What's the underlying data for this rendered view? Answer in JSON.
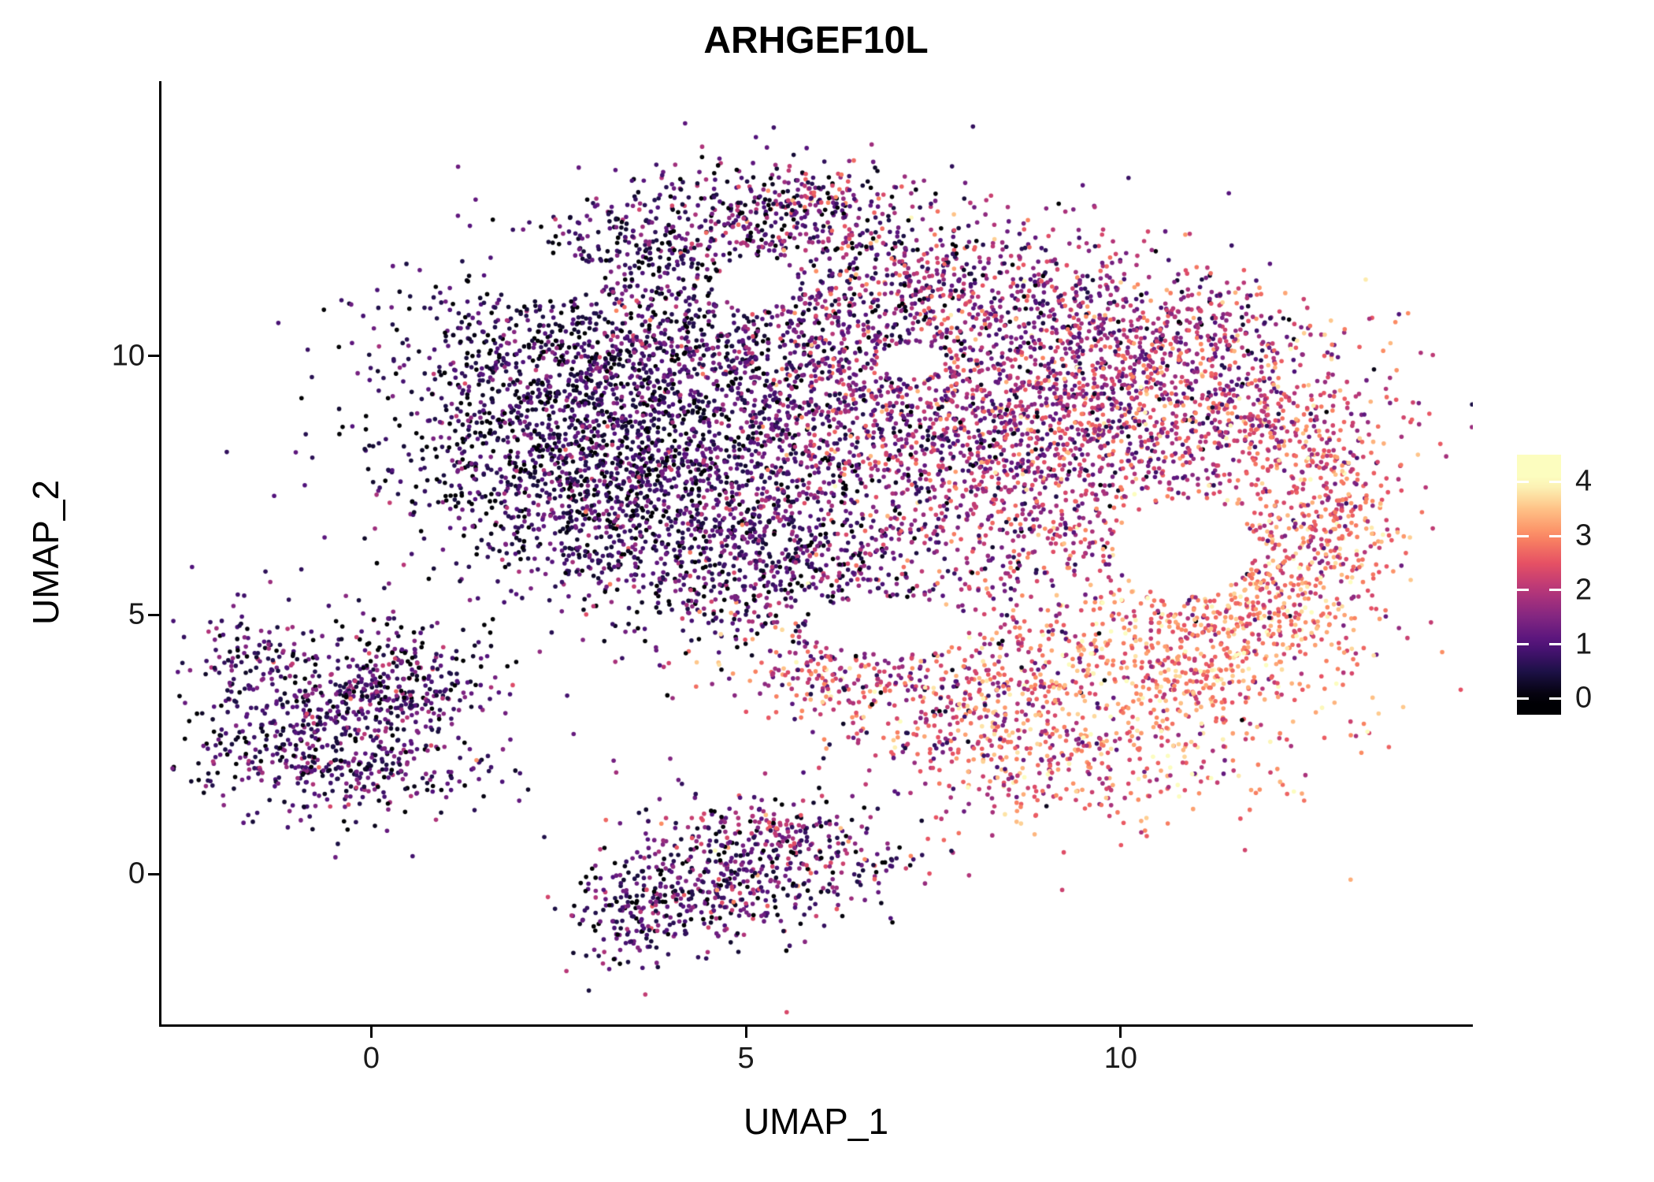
{
  "chart_data": {
    "type": "scatter",
    "title": "ARHGEF10L",
    "xlabel": "UMAP_1",
    "ylabel": "UMAP_2",
    "xlim": [
      -2.8,
      14.7
    ],
    "ylim": [
      -2.9,
      15.3
    ],
    "xticks": [
      0,
      5,
      10
    ],
    "yticks": [
      0,
      5,
      10
    ],
    "grid": false,
    "background": "#ffffff",
    "axis_color": "#000000",
    "tick_label_color": "#1a1a1a",
    "point": {
      "radius": 2.8,
      "seed": 7
    },
    "colorbar": {
      "position": "right",
      "vmin": 0,
      "vmax": 4,
      "ticks": [
        0,
        1,
        2,
        3,
        4
      ],
      "bar_range": [
        -0.3,
        4.5
      ],
      "colormap": "magma",
      "stops": [
        {
          "t": 0.0,
          "color": "#000004"
        },
        {
          "t": 0.125,
          "color": "#1d1147"
        },
        {
          "t": 0.25,
          "color": "#51127c"
        },
        {
          "t": 0.375,
          "color": "#822681"
        },
        {
          "t": 0.5,
          "color": "#b63679"
        },
        {
          "t": 0.625,
          "color": "#e65164"
        },
        {
          "t": 0.75,
          "color": "#fb8861"
        },
        {
          "t": 0.875,
          "color": "#fec287"
        },
        {
          "t": 1.0,
          "color": "#fcfdbf"
        }
      ]
    },
    "cluster_fields": [
      "center_x",
      "center_y",
      "sd_x",
      "sd_y",
      "n_points",
      "expression_mean",
      "expression_sd"
    ],
    "clusters": [
      [
        2.3,
        8.6,
        1.05,
        1.35,
        850,
        0.55,
        0.55
      ],
      [
        3.6,
        7.4,
        1.2,
        1.0,
        650,
        0.7,
        0.6
      ],
      [
        4.4,
        9.4,
        1.3,
        1.0,
        600,
        0.8,
        0.65
      ],
      [
        3.0,
        10.4,
        1.3,
        0.75,
        420,
        0.7,
        0.6
      ],
      [
        5.2,
        6.4,
        1.1,
        0.9,
        420,
        0.9,
        0.7
      ],
      [
        4.7,
        12.5,
        1.2,
        0.65,
        380,
        0.9,
        0.8
      ],
      [
        6.0,
        13.0,
        0.75,
        0.4,
        160,
        1.4,
        1.0
      ],
      [
        3.5,
        11.9,
        0.55,
        0.5,
        110,
        0.6,
        0.5
      ],
      [
        6.0,
        8.6,
        1.2,
        1.4,
        650,
        1.2,
        0.75
      ],
      [
        6.6,
        11.0,
        1.5,
        0.85,
        430,
        1.2,
        0.8
      ],
      [
        7.8,
        11.6,
        1.2,
        0.7,
        300,
        1.5,
        0.85
      ],
      [
        5.6,
        5.6,
        1.3,
        0.6,
        260,
        1.1,
        0.8
      ],
      [
        8.1,
        8.9,
        1.3,
        1.25,
        750,
        1.8,
        0.75
      ],
      [
        9.6,
        9.6,
        1.3,
        1.0,
        550,
        1.8,
        0.75
      ],
      [
        9.3,
        7.1,
        1.25,
        1.15,
        500,
        2.0,
        0.75
      ],
      [
        11.1,
        9.1,
        1.2,
        0.95,
        430,
        1.9,
        0.75
      ],
      [
        10.6,
        10.6,
        1.0,
        0.6,
        220,
        1.6,
        0.8
      ],
      [
        12.3,
        7.8,
        0.75,
        1.2,
        380,
        2.4,
        0.75
      ],
      [
        12.9,
        6.6,
        0.4,
        0.9,
        160,
        2.9,
        0.6
      ],
      [
        11.9,
        5.6,
        0.8,
        0.7,
        220,
        2.7,
        0.7
      ],
      [
        10.3,
        3.4,
        1.25,
        1.05,
        520,
        2.9,
        0.7
      ],
      [
        11.4,
        4.7,
        0.9,
        0.8,
        300,
        2.9,
        0.65
      ],
      [
        8.9,
        2.4,
        1.0,
        0.8,
        300,
        2.5,
        0.8
      ],
      [
        7.5,
        3.4,
        0.95,
        0.7,
        260,
        2.1,
        0.9
      ],
      [
        6.2,
        3.9,
        0.75,
        0.5,
        160,
        2.3,
        1.0
      ],
      [
        -0.6,
        2.9,
        0.95,
        0.85,
        520,
        0.85,
        0.7
      ],
      [
        0.35,
        3.7,
        0.7,
        0.6,
        240,
        0.8,
        0.7
      ],
      [
        -1.6,
        4.3,
        0.35,
        0.4,
        70,
        0.8,
        0.6
      ],
      [
        -0.2,
        1.9,
        0.85,
        0.45,
        170,
        0.9,
        0.7
      ],
      [
        4.4,
        -0.3,
        0.85,
        0.6,
        300,
        1.0,
        0.8
      ],
      [
        5.7,
        0.3,
        0.9,
        0.5,
        240,
        1.1,
        0.85
      ],
      [
        3.5,
        -0.9,
        0.45,
        0.5,
        130,
        0.8,
        0.6
      ],
      [
        5.0,
        0.9,
        0.6,
        0.35,
        90,
        1.4,
        1.0
      ],
      [
        4.6,
        6.2,
        2.8,
        2.2,
        220,
        1.0,
        0.8
      ],
      [
        8.5,
        5.4,
        2.2,
        1.3,
        150,
        2.0,
        0.9
      ]
    ],
    "hole_fields": [
      "center_x",
      "center_y",
      "radius_x",
      "radius_y"
    ],
    "holes": [
      [
        10.85,
        6.3,
        0.95,
        0.95
      ],
      [
        6.9,
        4.8,
        1.1,
        0.55
      ],
      [
        5.15,
        11.4,
        0.55,
        0.5
      ],
      [
        7.2,
        9.9,
        0.45,
        0.35
      ],
      [
        2.3,
        11.5,
        0.8,
        0.45
      ]
    ]
  }
}
